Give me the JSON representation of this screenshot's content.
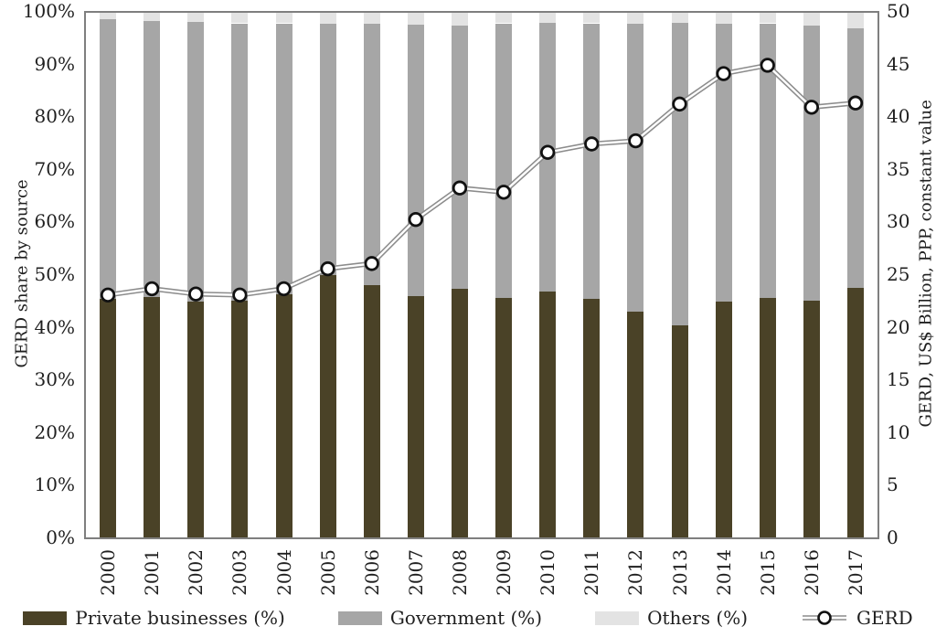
{
  "axes": {
    "left": {
      "title": "GERD share by source",
      "ticks": [
        "0%",
        "10%",
        "20%",
        "30%",
        "40%",
        "50%",
        "60%",
        "70%",
        "80%",
        "90%",
        "100%"
      ],
      "lim": [
        0,
        100
      ]
    },
    "right": {
      "title": "GERD, US$ Billion, PPP, constant value",
      "ticks": [
        "0",
        "5",
        "10",
        "15",
        "20",
        "25",
        "30",
        "35",
        "40",
        "45",
        "50"
      ],
      "lim": [
        0,
        50
      ]
    }
  },
  "legend": [
    {
      "label": "Private businesses (%)",
      "type": "bar",
      "swatch": "#4a4227"
    },
    {
      "label": "Government (%)",
      "type": "bar",
      "swatch": "#a6a6a6"
    },
    {
      "label": "Others (%)",
      "type": "bar",
      "swatch": "#e3e3e3"
    },
    {
      "label": "GERD",
      "type": "line",
      "swatch": "#8c8c8c"
    }
  ],
  "colors": {
    "private": "#4a4227",
    "government": "#a6a6a6",
    "others": "#e3e3e3",
    "line": "#8c8c8c",
    "marker_fill": "#ffffff",
    "marker_stroke": "#111111",
    "frame": "#7f7f7f",
    "text": "#1f1f1f"
  },
  "chart_data": {
    "type": "stacked-bar+line",
    "categories": [
      "2000",
      "2001",
      "2002",
      "2003",
      "2004",
      "2005",
      "2006",
      "2007",
      "2008",
      "2009",
      "2010",
      "2011",
      "2012",
      "2013",
      "2014",
      "2015",
      "2016",
      "2017"
    ],
    "series": [
      {
        "name": "Private businesses (%)",
        "type": "bar",
        "axis": "left",
        "color": "#4a4227",
        "values": [
          45.5,
          45.8,
          45.0,
          45.2,
          46.3,
          50.0,
          48.0,
          46.0,
          47.4,
          45.7,
          46.8,
          45.5,
          43.1,
          40.5,
          45.0,
          45.6,
          45.2,
          47.5
        ]
      },
      {
        "name": "Government (%)",
        "type": "bar",
        "axis": "left",
        "color": "#a6a6a6",
        "values": [
          53.3,
          52.7,
          53.2,
          52.8,
          51.7,
          47.9,
          49.9,
          51.7,
          50.2,
          52.3,
          51.3,
          52.5,
          54.8,
          57.5,
          52.9,
          52.4,
          52.3,
          49.6
        ]
      },
      {
        "name": "Others (%)",
        "type": "bar",
        "axis": "left",
        "color": "#e3e3e3",
        "values": [
          1.2,
          1.5,
          1.8,
          2.0,
          2.0,
          2.1,
          2.1,
          2.3,
          2.4,
          2.0,
          1.9,
          2.0,
          2.1,
          2.0,
          2.1,
          2.0,
          2.5,
          2.9
        ]
      },
      {
        "name": "GERD",
        "type": "line",
        "axis": "right",
        "color": "#8c8c8c",
        "values": [
          23.1,
          23.7,
          23.2,
          23.1,
          23.7,
          25.6,
          26.1,
          30.3,
          33.3,
          32.9,
          36.7,
          37.5,
          37.8,
          41.3,
          44.2,
          45.0,
          41.0,
          41.4
        ]
      }
    ],
    "left_ylabel": "GERD share by source",
    "right_ylabel": "GERD, US$ Billion, PPP, constant value",
    "left_ylim": [
      0,
      100
    ],
    "right_ylim": [
      0,
      50
    ],
    "grid": false,
    "legend_position": "bottom"
  }
}
